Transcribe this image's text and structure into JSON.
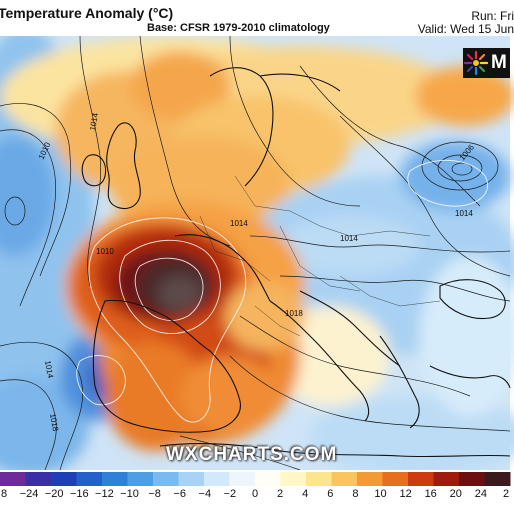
{
  "header": {
    "title": "Temperature Anomaly (°C)",
    "base": "Base: CFSR 1979-2010 climatology",
    "run": "Run: Fri",
    "valid": "Valid: Wed 15 Jun"
  },
  "map": {
    "isobar_labels": [
      "1010",
      "1014",
      "1006",
      "1014",
      "1014",
      "1018",
      "1010",
      "1018",
      "1014",
      "1014"
    ]
  },
  "logo": {
    "text": "M",
    "icon": "wxcharts-sun-icon"
  },
  "watermark": "WXCHARTS.COM",
  "legend": {
    "ticks": [
      "8",
      "−24",
      "−20",
      "−16",
      "−12",
      "−10",
      "−8",
      "−6",
      "−4",
      "−2",
      "0",
      "2",
      "4",
      "6",
      "8",
      "10",
      "12",
      "16",
      "20",
      "24",
      "2"
    ],
    "colors": [
      "#6e2a9a",
      "#3b2fa8",
      "#1f3fb8",
      "#2460cc",
      "#2f80d8",
      "#4f9ee3",
      "#79bbee",
      "#a8d3f5",
      "#d2e8fb",
      "#eef6fd",
      "#fffef5",
      "#fff7c6",
      "#fde58e",
      "#f9c55c",
      "#f39a33",
      "#e76f1c",
      "#cc3c10",
      "#a01a0e",
      "#6c0f10",
      "#3c1a1c"
    ]
  }
}
